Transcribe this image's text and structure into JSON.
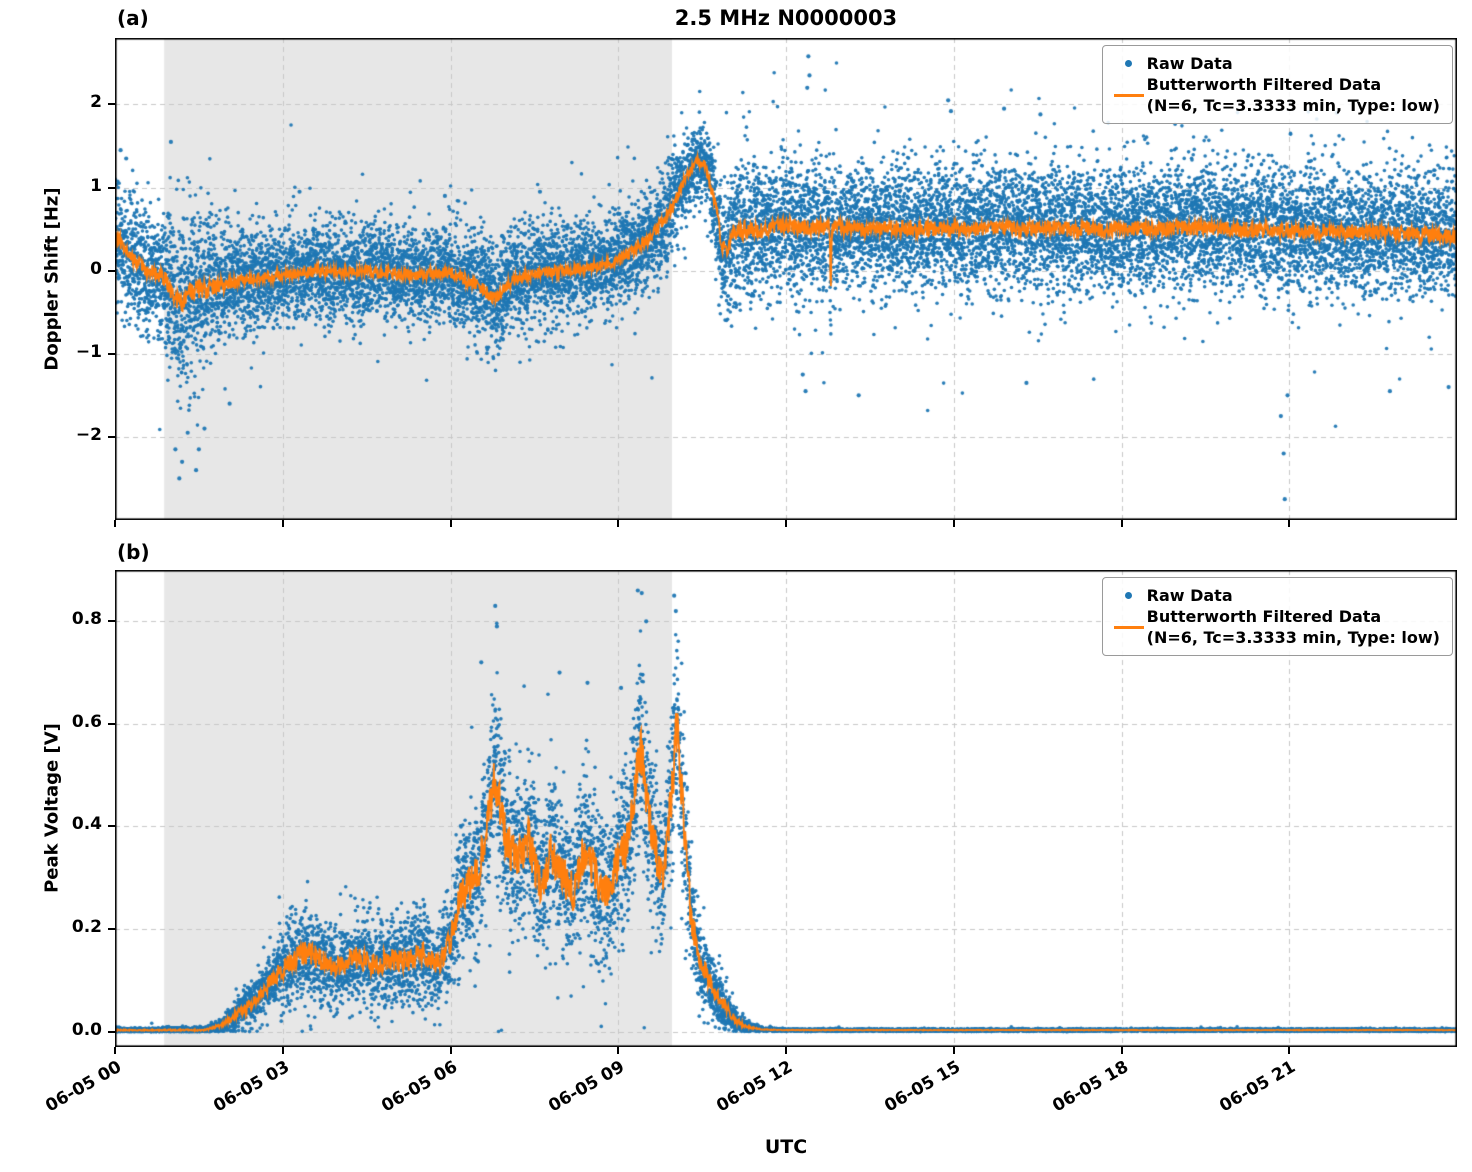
{
  "figure": {
    "title": "2.5 MHz N0000003",
    "xlabel": "UTC",
    "panel_a_label": "(a)",
    "panel_b_label": "(b)",
    "legend": {
      "raw_label": "Raw Data",
      "filtered_label_line1": "Butterworth Filtered Data",
      "filtered_label_line2": "(N=6, Tc=3.3333 min, Type: low)"
    },
    "colors": {
      "raw": "#1f77b4",
      "filtered": "#ff7f0e",
      "shade": "#e7e7e7",
      "grid": "#c7c7c7"
    },
    "xlim_hours": [
      0,
      24
    ],
    "x_description": "hours after 06-05 00:00 UTC",
    "xtick_hours": [
      0,
      3,
      6,
      9,
      12,
      15,
      18,
      21
    ],
    "xtick_labels": [
      "06-05 00",
      "06-05 03",
      "06-05 06",
      "06-05 09",
      "06-05 12",
      "06-05 15",
      "06-05 18",
      "06-05 21"
    ],
    "shaded_region_hours": [
      0.88,
      9.96
    ]
  },
  "chart_data": [
    {
      "type": "scatter",
      "panel": "a",
      "title": "2.5 MHz N0000003",
      "ylabel": "Doppler Shift [Hz]",
      "ylim": [
        -3.0,
        2.8
      ],
      "ytick_values": [
        2,
        1,
        0,
        -1,
        -2
      ],
      "ytick_labels": [
        "2",
        "1",
        "0",
        "−1",
        "−2"
      ],
      "series_names": [
        "Raw Data",
        "Butterworth Filtered Data (N=6, Tc=3.3333 min, Type: low)"
      ],
      "envelope_format": "[t_hours, band_center_Hz, band_half_width_Hz]",
      "envelope": [
        [
          0.0,
          0.45,
          0.58
        ],
        [
          0.25,
          0.18,
          0.6
        ],
        [
          0.55,
          0.02,
          0.65
        ],
        [
          0.9,
          -0.1,
          0.72
        ],
        [
          1.15,
          -0.4,
          0.95
        ],
        [
          1.3,
          -0.3,
          0.95
        ],
        [
          1.5,
          -0.25,
          0.92
        ],
        [
          1.8,
          -0.2,
          0.75
        ],
        [
          2.1,
          -0.15,
          0.58
        ],
        [
          2.5,
          -0.1,
          0.5
        ],
        [
          3.0,
          -0.05,
          0.5
        ],
        [
          3.5,
          0.0,
          0.52
        ],
        [
          4.0,
          -0.02,
          0.5
        ],
        [
          4.5,
          0.0,
          0.5
        ],
        [
          5.0,
          -0.04,
          0.5
        ],
        [
          5.5,
          -0.05,
          0.5
        ],
        [
          6.0,
          -0.02,
          0.5
        ],
        [
          6.5,
          -0.18,
          0.55
        ],
        [
          6.8,
          -0.35,
          0.55
        ],
        [
          7.1,
          -0.12,
          0.52
        ],
        [
          7.5,
          -0.03,
          0.5
        ],
        [
          8.0,
          0.0,
          0.5
        ],
        [
          8.5,
          0.05,
          0.5
        ],
        [
          9.0,
          0.12,
          0.5
        ],
        [
          9.3,
          0.25,
          0.52
        ],
        [
          9.6,
          0.42,
          0.55
        ],
        [
          9.9,
          0.68,
          0.55
        ],
        [
          10.15,
          1.05,
          0.48
        ],
        [
          10.4,
          1.32,
          0.4
        ],
        [
          10.55,
          1.28,
          0.42
        ],
        [
          10.75,
          0.75,
          0.55
        ],
        [
          10.85,
          0.32,
          0.65
        ],
        [
          10.95,
          0.22,
          0.7
        ],
        [
          11.05,
          0.45,
          0.75
        ],
        [
          11.2,
          0.5,
          0.78
        ],
        [
          11.5,
          0.48,
          0.72
        ],
        [
          11.9,
          0.55,
          0.7
        ],
        [
          12.3,
          0.52,
          0.7
        ],
        [
          12.78,
          0.52,
          0.68
        ],
        [
          12.8,
          -0.3,
          0.68
        ],
        [
          12.82,
          0.52,
          0.68
        ],
        [
          13.4,
          0.5,
          0.67
        ],
        [
          14.0,
          0.52,
          0.67
        ],
        [
          15.0,
          0.5,
          0.67
        ],
        [
          16.0,
          0.52,
          0.67
        ],
        [
          17.0,
          0.5,
          0.67
        ],
        [
          18.0,
          0.5,
          0.67
        ],
        [
          19.0,
          0.52,
          0.67
        ],
        [
          20.0,
          0.5,
          0.67
        ],
        [
          21.0,
          0.48,
          0.67
        ],
        [
          22.0,
          0.46,
          0.67
        ],
        [
          23.0,
          0.45,
          0.67
        ],
        [
          24.0,
          0.4,
          0.67
        ]
      ],
      "outliers": [
        [
          0.1,
          1.45
        ],
        [
          0.2,
          1.35
        ],
        [
          1.0,
          1.55
        ],
        [
          1.08,
          -2.15
        ],
        [
          1.15,
          -2.5
        ],
        [
          1.2,
          -2.3
        ],
        [
          1.3,
          -1.95
        ],
        [
          1.45,
          -2.4
        ],
        [
          1.5,
          -2.15
        ],
        [
          1.6,
          -1.9
        ],
        [
          2.05,
          -1.6
        ],
        [
          3.3,
          0.95
        ],
        [
          5.9,
          0.9
        ],
        [
          7.6,
          0.95
        ],
        [
          12.3,
          -1.25
        ],
        [
          12.35,
          -1.45
        ],
        [
          13.3,
          -1.5
        ],
        [
          16.3,
          -1.35
        ],
        [
          12.38,
          2.2
        ],
        [
          12.4,
          2.58
        ],
        [
          12.42,
          2.35
        ],
        [
          14.9,
          2.05
        ],
        [
          14.95,
          1.92
        ],
        [
          15.9,
          1.95
        ],
        [
          16.55,
          1.88
        ],
        [
          21.85,
          1.9
        ],
        [
          20.85,
          -1.75
        ],
        [
          20.9,
          -2.2
        ],
        [
          20.92,
          -2.75
        ],
        [
          20.97,
          -1.5
        ],
        [
          22.8,
          -1.45
        ],
        [
          23.85,
          -1.4
        ]
      ],
      "n_points": 16000,
      "seed": 1337,
      "line_noise": 0.14
    },
    {
      "type": "scatter",
      "panel": "b",
      "ylabel": "Peak Voltage [V]",
      "ylim": [
        -0.03,
        0.9
      ],
      "ytick_values": [
        0.0,
        0.2,
        0.4,
        0.6,
        0.8
      ],
      "ytick_labels": [
        "0.0",
        "0.2",
        "0.4",
        "0.6",
        "0.8"
      ],
      "series_names": [
        "Raw Data",
        "Butterworth Filtered Data (N=6, Tc=3.3333 min, Type: low)"
      ],
      "envelope_format": "[t_hours, band_center_V, band_half_width_V]",
      "envelope": [
        [
          0.0,
          0.003,
          0.004
        ],
        [
          1.6,
          0.003,
          0.005
        ],
        [
          1.9,
          0.012,
          0.012
        ],
        [
          2.2,
          0.035,
          0.03
        ],
        [
          2.5,
          0.06,
          0.04
        ],
        [
          2.8,
          0.1,
          0.055
        ],
        [
          3.1,
          0.13,
          0.07
        ],
        [
          3.4,
          0.155,
          0.08
        ],
        [
          3.7,
          0.14,
          0.075
        ],
        [
          4.0,
          0.125,
          0.07
        ],
        [
          4.3,
          0.145,
          0.075
        ],
        [
          4.6,
          0.13,
          0.07
        ],
        [
          4.9,
          0.14,
          0.075
        ],
        [
          5.2,
          0.135,
          0.07
        ],
        [
          5.5,
          0.155,
          0.08
        ],
        [
          5.8,
          0.13,
          0.07
        ],
        [
          6.0,
          0.18,
          0.09
        ],
        [
          6.2,
          0.27,
          0.12
        ],
        [
          6.5,
          0.31,
          0.13
        ],
        [
          6.8,
          0.5,
          0.17
        ],
        [
          7.0,
          0.37,
          0.15
        ],
        [
          7.2,
          0.33,
          0.14
        ],
        [
          7.4,
          0.38,
          0.15
        ],
        [
          7.6,
          0.28,
          0.13
        ],
        [
          7.8,
          0.35,
          0.145
        ],
        [
          8.0,
          0.31,
          0.14
        ],
        [
          8.2,
          0.27,
          0.13
        ],
        [
          8.4,
          0.36,
          0.15
        ],
        [
          8.6,
          0.3,
          0.14
        ],
        [
          8.8,
          0.28,
          0.135
        ],
        [
          9.0,
          0.33,
          0.14
        ],
        [
          9.2,
          0.38,
          0.15
        ],
        [
          9.4,
          0.56,
          0.17
        ],
        [
          9.6,
          0.38,
          0.15
        ],
        [
          9.8,
          0.3,
          0.135
        ],
        [
          9.95,
          0.45,
          0.16
        ],
        [
          10.05,
          0.6,
          0.15
        ],
        [
          10.15,
          0.45,
          0.15
        ],
        [
          10.3,
          0.22,
          0.1
        ],
        [
          10.5,
          0.13,
          0.07
        ],
        [
          10.7,
          0.08,
          0.05
        ],
        [
          10.9,
          0.05,
          0.04
        ],
        [
          11.1,
          0.02,
          0.02
        ],
        [
          11.35,
          0.008,
          0.008
        ],
        [
          11.6,
          0.004,
          0.003
        ],
        [
          12.0,
          0.003,
          0.002
        ],
        [
          24.0,
          0.003,
          0.002
        ]
      ],
      "outliers": [
        [
          6.55,
          0.72
        ],
        [
          6.8,
          0.83
        ],
        [
          6.83,
          0.79
        ],
        [
          7.95,
          0.7
        ],
        [
          8.45,
          0.68
        ],
        [
          9.05,
          0.67
        ],
        [
          9.35,
          0.86
        ],
        [
          9.42,
          0.855
        ],
        [
          9.5,
          0.8
        ],
        [
          10.0,
          0.85
        ],
        [
          10.03,
          0.82
        ]
      ],
      "n_points": 13000,
      "seed": 2024,
      "line_noise": 0.3,
      "clamp_min": 0.0
    }
  ]
}
